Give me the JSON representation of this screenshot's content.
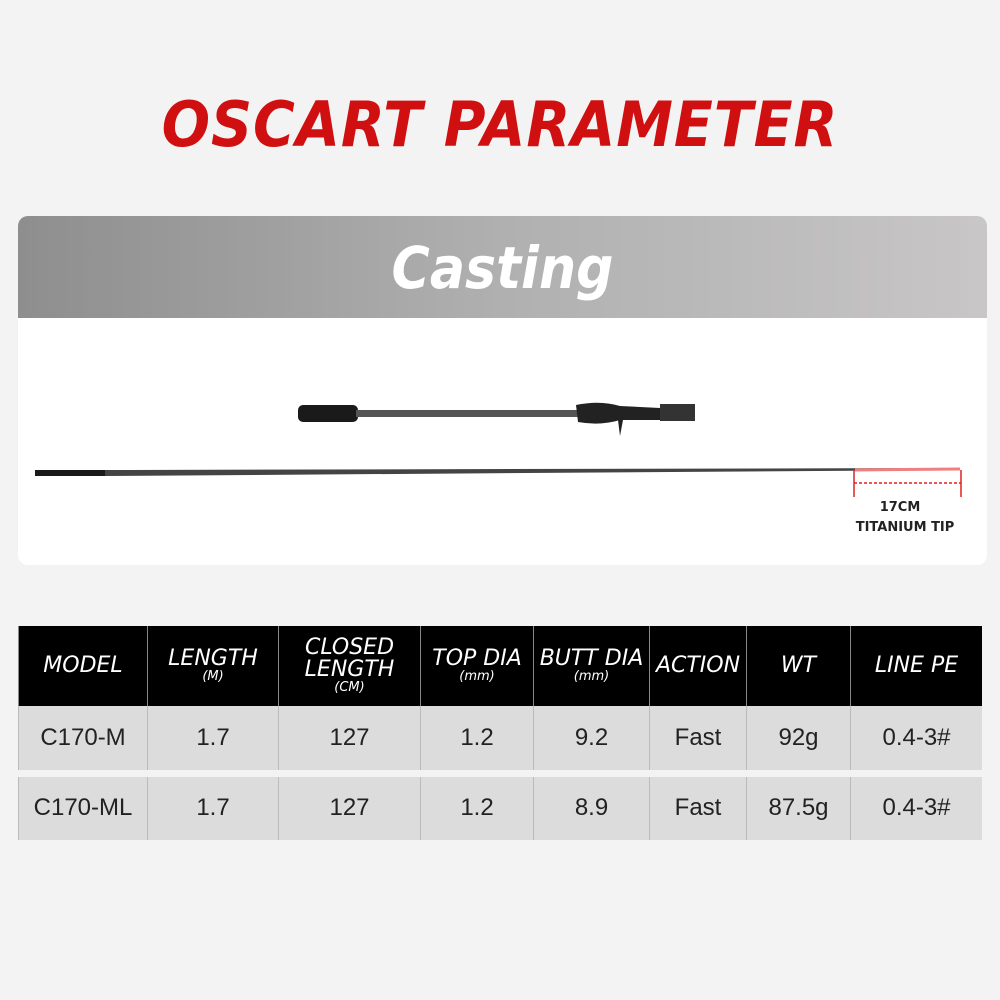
{
  "title": "OSCART PARAMETER",
  "section": "Casting",
  "tip": {
    "length": "17CM",
    "label": "TITANIUM TIP",
    "marker_color": "#e02020"
  },
  "table": {
    "headers": [
      {
        "label": "MODEL",
        "unit": ""
      },
      {
        "label": "LENGTH",
        "unit": "(M)"
      },
      {
        "label": "CLOSED LENGTH",
        "unit": "(CM)"
      },
      {
        "label": "TOP DIA",
        "unit": "(mm)"
      },
      {
        "label": "BUTT DIA",
        "unit": "(mm)"
      },
      {
        "label": "ACTION",
        "unit": ""
      },
      {
        "label": "WT",
        "unit": ""
      },
      {
        "label": "LINE PE",
        "unit": ""
      }
    ],
    "rows": [
      [
        "C170-M",
        "1.7",
        "127",
        "1.2",
        "9.2",
        "Fast",
        "92g",
        "0.4-3#"
      ],
      [
        "C170-ML",
        "1.7",
        "127",
        "1.2",
        "8.9",
        "Fast",
        "87.5g",
        "0.4-3#"
      ]
    ]
  }
}
